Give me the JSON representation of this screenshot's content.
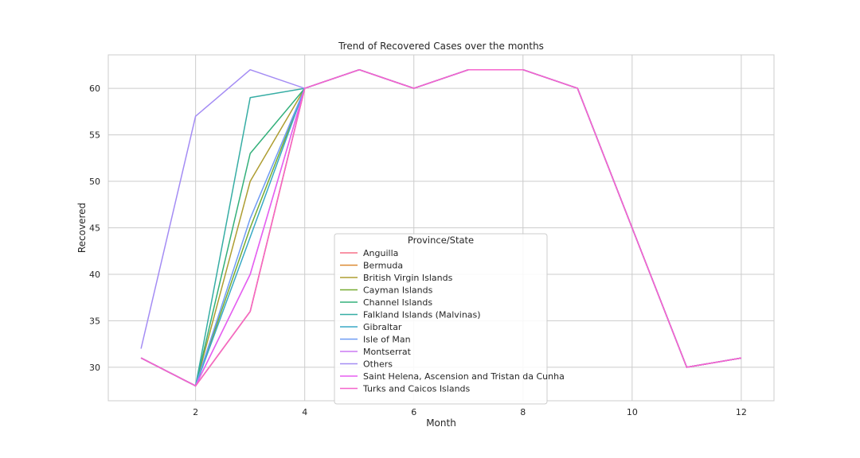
{
  "chart_data": {
    "type": "line",
    "title": "Trend of Recovered Cases over the months",
    "xlabel": "Month",
    "ylabel": "Recovered",
    "xlim": [
      0.4,
      12.6
    ],
    "ylim": [
      26.4,
      63.6
    ],
    "xticks": [
      2,
      4,
      6,
      8,
      10,
      12
    ],
    "yticks": [
      30,
      35,
      40,
      45,
      50,
      55,
      60
    ],
    "grid": true,
    "legend_title": "Province/State",
    "legend_position": "lower-center",
    "x": [
      1,
      2,
      3,
      4,
      5,
      6,
      7,
      8,
      9,
      10,
      11,
      12
    ],
    "series": [
      {
        "name": "Anguilla",
        "color": "#f77189",
        "values": [
          31,
          28,
          36,
          60,
          62,
          60,
          62,
          62,
          60,
          45,
          30,
          31
        ]
      },
      {
        "name": "Bermuda",
        "color": "#dc8932",
        "values": [
          31,
          28,
          36,
          60,
          62,
          60,
          62,
          62,
          60,
          45,
          30,
          31
        ]
      },
      {
        "name": "British Virgin Islands",
        "color": "#ae9d31",
        "values": [
          31,
          28,
          50,
          60,
          62,
          60,
          62,
          62,
          60,
          45,
          30,
          31
        ]
      },
      {
        "name": "Cayman Islands",
        "color": "#77ab31",
        "values": [
          31,
          28,
          45,
          60,
          62,
          60,
          62,
          62,
          60,
          45,
          30,
          31
        ]
      },
      {
        "name": "Channel Islands",
        "color": "#33b07a",
        "values": [
          31,
          28,
          53,
          60,
          62,
          60,
          62,
          62,
          60,
          45,
          30,
          31
        ]
      },
      {
        "name": "Falkland Islands (Malvinas)",
        "color": "#36ada4",
        "values": [
          31,
          28,
          59,
          60,
          62,
          60,
          62,
          62,
          60,
          45,
          30,
          31
        ]
      },
      {
        "name": "Gibraltar",
        "color": "#38a9c5",
        "values": [
          31,
          28,
          44,
          60,
          62,
          60,
          62,
          62,
          60,
          45,
          30,
          31
        ]
      },
      {
        "name": "Isle of Man",
        "color": "#6e9bf4",
        "values": [
          31,
          28,
          46,
          60,
          62,
          60,
          62,
          62,
          60,
          45,
          30,
          31
        ]
      },
      {
        "name": "Montserrat",
        "color": "#cc7af4",
        "values": [
          31,
          28,
          40,
          60,
          62,
          60,
          62,
          62,
          60,
          45,
          30,
          31
        ]
      },
      {
        "name": "Others",
        "color": "#a48cf4",
        "values": [
          32,
          57,
          62,
          60,
          62,
          60,
          62,
          62,
          60,
          45,
          30,
          31
        ]
      },
      {
        "name": "Saint Helena, Ascension and Tristan da Cunha",
        "color": "#e75ff0",
        "values": [
          31,
          28,
          40,
          60,
          62,
          60,
          62,
          62,
          60,
          45,
          30,
          31
        ]
      },
      {
        "name": "Turks and Caicos Islands",
        "color": "#f565cc",
        "values": [
          31,
          28,
          36,
          60,
          62,
          60,
          62,
          62,
          60,
          45,
          30,
          31
        ]
      }
    ]
  }
}
